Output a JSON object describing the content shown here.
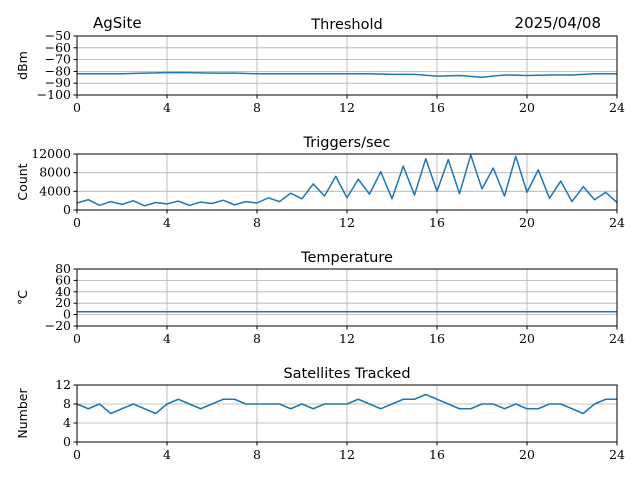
{
  "header": {
    "site": "AgSite",
    "date": "2025/04/08"
  },
  "colors": {
    "line": "#1f77b4",
    "grid": "#b0b0b0",
    "axis": "#000000"
  },
  "chart_data": [
    {
      "type": "line",
      "title": "Threshold",
      "xlabel": "",
      "ylabel": "dBm",
      "xlim": [
        0,
        24
      ],
      "ylim": [
        -100,
        -50
      ],
      "xticks": [
        0,
        4,
        8,
        12,
        16,
        20,
        24
      ],
      "yticks": [
        -100,
        -90,
        -80,
        -70,
        -60,
        -50
      ],
      "ytick_labels": [
        "−100",
        "−90",
        "−80",
        "−70",
        "−60",
        "−50"
      ],
      "grid": true,
      "series": [
        {
          "x": [
            0,
            1,
            2,
            3,
            4,
            5,
            6,
            7,
            8,
            9,
            10,
            11,
            12,
            13,
            14,
            15,
            16,
            17,
            18,
            19,
            20,
            21,
            22,
            23,
            24
          ],
          "values": [
            -82,
            -82,
            -82,
            -81.5,
            -81,
            -81,
            -81.5,
            -81.5,
            -82,
            -82,
            -82,
            -82,
            -82,
            -82,
            -82.5,
            -82.5,
            -84,
            -83.5,
            -85,
            -83,
            -83.5,
            -83,
            -83,
            -82,
            -82
          ]
        }
      ]
    },
    {
      "type": "line",
      "title": "Triggers/sec",
      "xlabel": "",
      "ylabel": "Count",
      "xlim": [
        0,
        24
      ],
      "ylim": [
        0,
        12000
      ],
      "xticks": [
        0,
        4,
        8,
        12,
        16,
        20,
        24
      ],
      "yticks": [
        0,
        4000,
        8000,
        12000
      ],
      "ytick_labels": [
        "0",
        "4000",
        "8000",
        "12000"
      ],
      "grid": true,
      "series": [
        {
          "x": [
            0,
            0.5,
            1,
            1.5,
            2,
            2.5,
            3,
            3.5,
            4,
            4.5,
            5,
            5.5,
            6,
            6.5,
            7,
            7.5,
            8,
            8.5,
            9,
            9.5,
            10,
            10.5,
            11,
            11.5,
            12,
            12.5,
            13,
            13.5,
            14,
            14.5,
            15,
            15.5,
            16,
            16.5,
            17,
            17.5,
            18,
            18.5,
            19,
            19.5,
            20,
            20.5,
            21,
            21.5,
            22,
            22.5,
            23,
            23.5,
            24
          ],
          "values": [
            1500,
            2200,
            1000,
            1800,
            1200,
            2000,
            900,
            1600,
            1300,
            1900,
            1000,
            1700,
            1400,
            2100,
            1100,
            1800,
            1500,
            2600,
            1800,
            3600,
            2400,
            5600,
            3000,
            7200,
            2600,
            6600,
            3400,
            8200,
            2400,
            9400,
            3200,
            11000,
            4000,
            10800,
            3500,
            11800,
            4500,
            9000,
            3000,
            11500,
            3800,
            8600,
            2500,
            6200,
            1800,
            5000,
            2200,
            3800,
            1600
          ]
        }
      ]
    },
    {
      "type": "line",
      "title": "Temperature",
      "xlabel": "",
      "ylabel": "°C",
      "xlim": [
        0,
        24
      ],
      "ylim": [
        -20,
        80
      ],
      "xticks": [
        0,
        4,
        8,
        12,
        16,
        20,
        24
      ],
      "yticks": [
        -20,
        0,
        20,
        40,
        60,
        80
      ],
      "ytick_labels": [
        "−20",
        "0",
        "20",
        "40",
        "60",
        "80"
      ],
      "grid": true,
      "series": [
        {
          "x": [
            0,
            24
          ],
          "values": [
            5,
            5
          ]
        }
      ]
    },
    {
      "type": "line",
      "title": "Satellites Tracked",
      "xlabel": "",
      "ylabel": "Number",
      "xlim": [
        0,
        24
      ],
      "ylim": [
        0,
        12
      ],
      "xticks": [
        0,
        4,
        8,
        12,
        16,
        20,
        24
      ],
      "yticks": [
        0,
        4,
        8,
        12
      ],
      "ytick_labels": [
        "0",
        "4",
        "8",
        "12"
      ],
      "grid": true,
      "series": [
        {
          "x": [
            0,
            0.5,
            1,
            1.5,
            2,
            2.5,
            3,
            3.5,
            4,
            4.5,
            5,
            5.5,
            6,
            6.5,
            7,
            7.5,
            8,
            8.5,
            9,
            9.5,
            10,
            10.5,
            11,
            11.5,
            12,
            12.5,
            13,
            13.5,
            14,
            14.5,
            15,
            15.5,
            16,
            16.5,
            17,
            17.5,
            18,
            18.5,
            19,
            19.5,
            20,
            20.5,
            21,
            21.5,
            22,
            22.5,
            23,
            23.5,
            24
          ],
          "values": [
            8,
            7,
            8,
            6,
            7,
            8,
            7,
            6,
            8,
            9,
            8,
            7,
            8,
            9,
            9,
            8,
            8,
            8,
            8,
            7,
            8,
            7,
            8,
            8,
            8,
            9,
            8,
            7,
            8,
            9,
            9,
            10,
            9,
            8,
            7,
            7,
            8,
            8,
            7,
            8,
            7,
            7,
            8,
            8,
            7,
            6,
            8,
            9,
            9
          ]
        }
      ]
    }
  ]
}
